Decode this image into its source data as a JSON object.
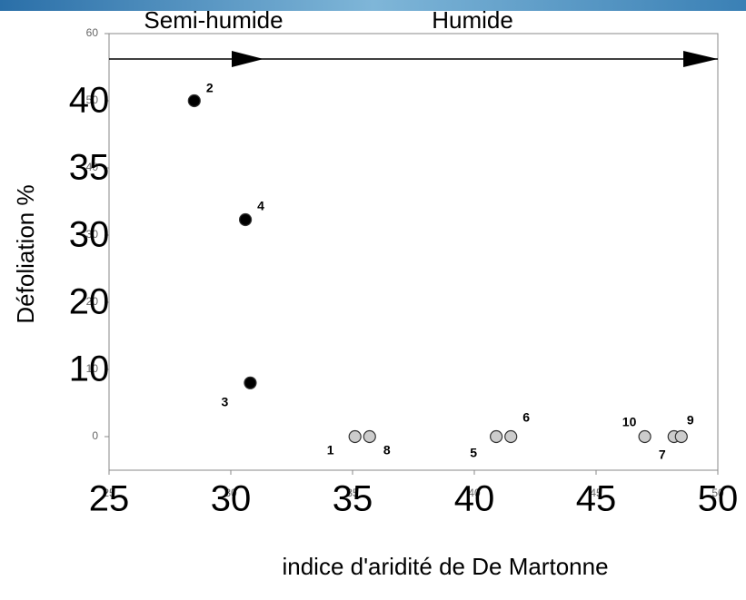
{
  "chart_data": {
    "type": "scatter",
    "xlabel": "indice d'aridité de De Martonne",
    "ylabel": "Défoliation  %",
    "annotations": [
      "Semi-humide",
      "Humide"
    ],
    "xlim": [
      25,
      50
    ],
    "ylim": [
      -5,
      60
    ],
    "xticks": [
      25,
      30,
      35,
      40,
      45,
      50
    ],
    "yticks": [
      0,
      10,
      20,
      30,
      40,
      50,
      60
    ],
    "overlay_xticks": [
      25,
      30,
      35,
      40,
      45,
      50
    ],
    "overlay_yticks": [
      {
        "value": 50,
        "label": "40"
      },
      {
        "value": 40,
        "label": "35"
      },
      {
        "value": 30,
        "label": "30"
      },
      {
        "value": 20,
        "label": "20"
      },
      {
        "value": 10,
        "label": "10"
      }
    ],
    "series": [
      {
        "color": "#000000",
        "x": [
          28.5,
          30.6,
          30.8
        ],
        "values": [
          50,
          32.3,
          8
        ],
        "labels": [
          "2",
          "4",
          "3"
        ]
      },
      {
        "color": "#cccccc",
        "x": [
          35.1,
          35.7,
          40.9,
          41.5,
          47.0,
          48.2,
          48.5
        ],
        "values": [
          0,
          0,
          0,
          0,
          0,
          0,
          0
        ],
        "labels": [
          "1",
          "8",
          "5",
          "6",
          "10",
          "7",
          "9"
        ]
      }
    ]
  }
}
